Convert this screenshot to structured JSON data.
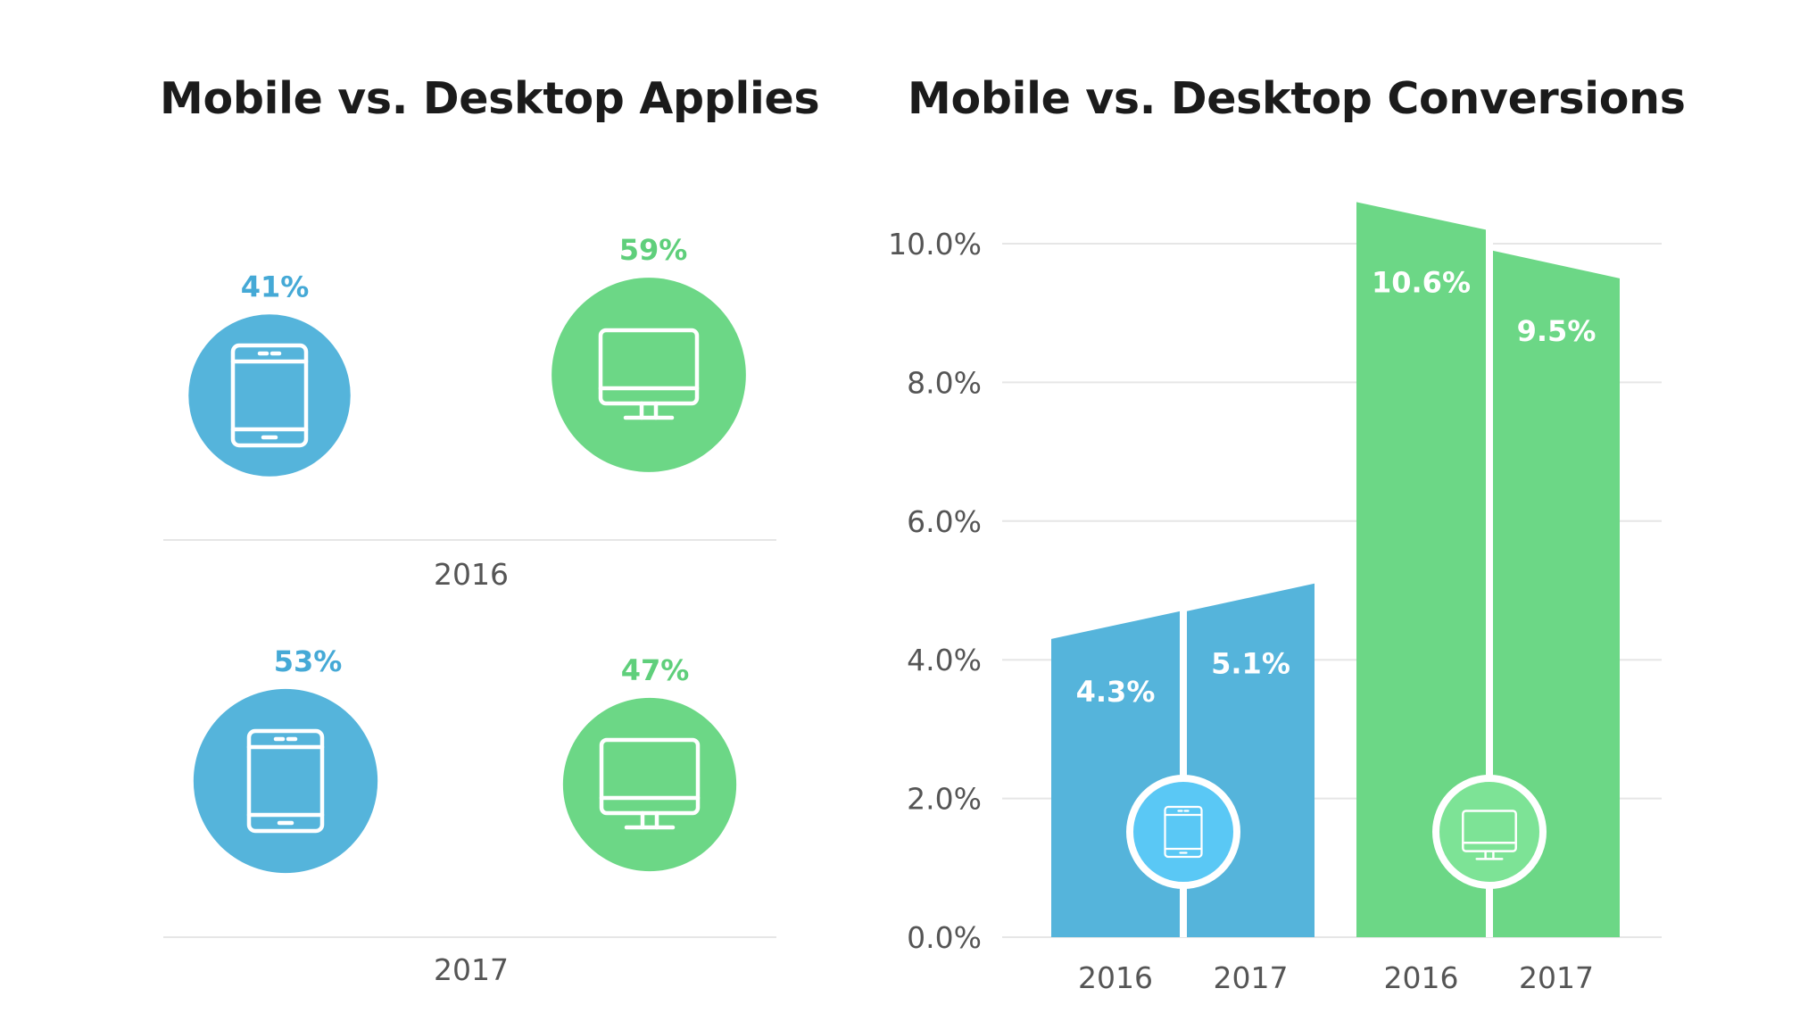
{
  "titles": {
    "left": "Mobile vs. Desktop Applies",
    "right": "Mobile vs. Desktop Conversions"
  },
  "colors": {
    "mobile": "#55b4db",
    "desktop": "#6cd786",
    "mobile_label": "#45a9d6",
    "desktop_label": "#5fcf7b",
    "mobile_badge": "#5ac8f5",
    "desktop_badge": "#7de396",
    "grid": "#e6e6e6"
  },
  "chart_data": [
    {
      "type": "pie",
      "title": "Mobile vs. Desktop Applies",
      "icons": {
        "mobile": "tablet-icon",
        "desktop": "desktop-monitor-icon"
      },
      "groups": [
        {
          "year": "2016",
          "mobile": {
            "value": 41,
            "label": "41%"
          },
          "desktop": {
            "value": 59,
            "label": "59%"
          }
        },
        {
          "year": "2017",
          "mobile": {
            "value": 53,
            "label": "53%"
          },
          "desktop": {
            "value": 47,
            "label": "47%"
          }
        }
      ]
    },
    {
      "type": "bar",
      "title": "Mobile vs. Desktop Conversions",
      "categories": [
        "2016",
        "2017"
      ],
      "series": [
        {
          "name": "Mobile",
          "icon": "tablet-icon",
          "values": [
            4.3,
            5.1
          ],
          "labels": [
            "4.3%",
            "5.1%"
          ]
        },
        {
          "name": "Desktop",
          "icon": "desktop-monitor-icon",
          "values": [
            10.6,
            9.5
          ],
          "labels": [
            "10.6%",
            "9.5%"
          ]
        }
      ],
      "yticks": [
        "0.0%",
        "2.0%",
        "4.0%",
        "6.0%",
        "8.0%",
        "10.0%"
      ],
      "ylim": [
        0,
        10.6
      ],
      "grid": true
    }
  ]
}
